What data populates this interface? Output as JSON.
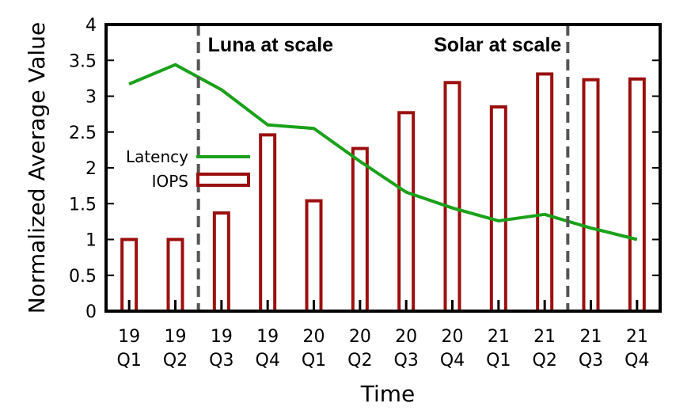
{
  "chart_data": {
    "type": "bar",
    "categories": [
      [
        "19",
        "Q1"
      ],
      [
        "19",
        "Q2"
      ],
      [
        "19",
        "Q3"
      ],
      [
        "19",
        "Q4"
      ],
      [
        "20",
        "Q1"
      ],
      [
        "20",
        "Q2"
      ],
      [
        "20",
        "Q3"
      ],
      [
        "20",
        "Q4"
      ],
      [
        "21",
        "Q1"
      ],
      [
        "21",
        "Q2"
      ],
      [
        "21",
        "Q3"
      ],
      [
        "21",
        "Q4"
      ]
    ],
    "series": [
      {
        "name": "IOPS",
        "type": "bar",
        "color": "#9b0f0f",
        "values": [
          1.0,
          1.0,
          1.37,
          2.46,
          1.54,
          2.27,
          2.77,
          3.19,
          2.85,
          3.31,
          3.23,
          3.24
        ]
      },
      {
        "name": "Latency",
        "type": "line",
        "color": "#1aa11a",
        "values": [
          3.17,
          3.44,
          3.09,
          2.6,
          2.55,
          2.09,
          1.66,
          1.44,
          1.26,
          1.35,
          1.16,
          1.0
        ]
      }
    ],
    "xlabel": "Time",
    "ylabel": "Normalized Average Value",
    "ylim": [
      0,
      4
    ],
    "yticks": [
      "0",
      "0.5",
      "1",
      "1.5",
      "2",
      "2.5",
      "3",
      "3.5",
      "4"
    ],
    "grid": false,
    "legend_position": "center-left",
    "annotations": [
      {
        "text": "Luna at scale",
        "divider_after_category": 1
      },
      {
        "text": "Solar at scale",
        "divider_after_category": 9
      }
    ]
  }
}
